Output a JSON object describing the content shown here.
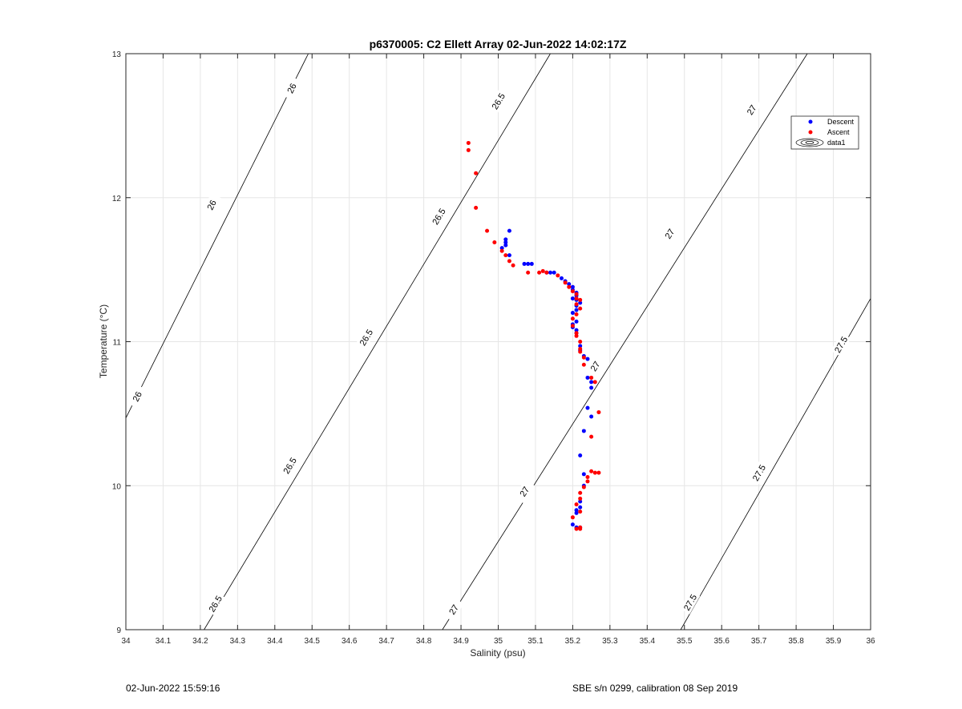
{
  "chart_data": {
    "type": "scatter",
    "title": "p6370005: C2 Ellett Array 02-Jun-2022 14:02:17Z",
    "xlabel": "Salinity (psu)",
    "ylabel": "Temperature (°C)",
    "xlim": [
      34,
      36
    ],
    "ylim": [
      9,
      13
    ],
    "xticks": [
      34,
      34.1,
      34.2,
      34.3,
      34.4,
      34.5,
      34.6,
      34.7,
      34.8,
      34.9,
      35,
      35.1,
      35.2,
      35.3,
      35.4,
      35.5,
      35.6,
      35.7,
      35.8,
      35.9,
      36
    ],
    "xtick_labels": [
      "34",
      "34.1",
      "34.2",
      "34.3",
      "34.4",
      "34.5",
      "34.6",
      "34.7",
      "34.8",
      "34.9",
      "35",
      "35.1",
      "35.2",
      "35.3",
      "35.4",
      "35.5",
      "35.6",
      "35.7",
      "35.8",
      "35.9",
      "36"
    ],
    "yticks": [
      9,
      10,
      11,
      12,
      13
    ],
    "ytick_labels": [
      "9",
      "10",
      "11",
      "12",
      "13"
    ],
    "grid": true,
    "legend_position": "top-right",
    "legend": [
      {
        "label": "Descent",
        "color": "#0000ff",
        "marker": "dot"
      },
      {
        "label": "Ascent",
        "color": "#ff0000",
        "marker": "dot"
      },
      {
        "label": "data1",
        "color": "#000000",
        "marker": "contour"
      }
    ],
    "contours": [
      {
        "level": "26",
        "points": [
          [
            34.0,
            10.47
          ],
          [
            34.49,
            13.0
          ]
        ],
        "labels": [
          [
            34.03,
            10.62
          ],
          [
            34.23,
            11.95
          ],
          [
            34.445,
            12.76
          ]
        ]
      },
      {
        "level": "26.5",
        "points": [
          [
            34.21,
            9.0
          ],
          [
            35.14,
            13.0
          ]
        ],
        "labels": [
          [
            34.24,
            9.18
          ],
          [
            34.44,
            10.14
          ],
          [
            34.645,
            11.03
          ],
          [
            34.84,
            11.87
          ],
          [
            35.0,
            12.67
          ]
        ]
      },
      {
        "level": "27",
        "points": [
          [
            34.85,
            9.0
          ],
          [
            35.83,
            13.0
          ]
        ],
        "labels": [
          [
            34.88,
            9.14
          ],
          [
            35.07,
            9.96
          ],
          [
            35.26,
            10.83
          ],
          [
            35.46,
            11.75
          ],
          [
            35.68,
            12.61
          ]
        ]
      },
      {
        "level": "27.5",
        "points": [
          [
            35.49,
            9.0
          ],
          [
            36.0,
            11.3
          ]
        ],
        "labels": [
          [
            35.515,
            9.19
          ],
          [
            35.7,
            10.09
          ],
          [
            35.92,
            10.98
          ]
        ]
      }
    ],
    "series": [
      {
        "name": "Descent",
        "color": "#0000ff",
        "points": [
          [
            35.02,
            11.67
          ],
          [
            35.03,
            11.77
          ],
          [
            35.02,
            11.71
          ],
          [
            35.02,
            11.69
          ],
          [
            35.01,
            11.65
          ],
          [
            35.03,
            11.6
          ],
          [
            35.07,
            11.54
          ],
          [
            35.08,
            11.54
          ],
          [
            35.09,
            11.54
          ],
          [
            35.13,
            11.48
          ],
          [
            35.14,
            11.48
          ],
          [
            35.15,
            11.48
          ],
          [
            35.17,
            11.44
          ],
          [
            35.18,
            11.42
          ],
          [
            35.19,
            11.4
          ],
          [
            35.2,
            11.38
          ],
          [
            35.2,
            11.36
          ],
          [
            35.21,
            11.34
          ],
          [
            35.21,
            11.32
          ],
          [
            35.2,
            11.3
          ],
          [
            35.21,
            11.29
          ],
          [
            35.22,
            11.27
          ],
          [
            35.21,
            11.25
          ],
          [
            35.21,
            11.22
          ],
          [
            35.2,
            11.2
          ],
          [
            35.21,
            11.14
          ],
          [
            35.2,
            11.12
          ],
          [
            35.2,
            11.1
          ],
          [
            35.21,
            11.08
          ],
          [
            35.21,
            11.06
          ],
          [
            35.22,
            10.97
          ],
          [
            35.22,
            10.94
          ],
          [
            35.23,
            10.9
          ],
          [
            35.24,
            10.88
          ],
          [
            35.24,
            10.75
          ],
          [
            35.25,
            10.72
          ],
          [
            35.25,
            10.68
          ],
          [
            35.24,
            10.54
          ],
          [
            35.25,
            10.48
          ],
          [
            35.23,
            10.38
          ],
          [
            35.22,
            10.21
          ],
          [
            35.23,
            10.08
          ],
          [
            35.23,
            10.0
          ],
          [
            35.22,
            9.89
          ],
          [
            35.22,
            9.85
          ],
          [
            35.21,
            9.83
          ],
          [
            35.21,
            9.81
          ],
          [
            35.2,
            9.73
          ],
          [
            35.21,
            9.71
          ],
          [
            35.22,
            9.71
          ]
        ]
      },
      {
        "name": "Ascent",
        "color": "#ff0000",
        "points": [
          [
            34.92,
            12.38
          ],
          [
            34.92,
            12.33
          ],
          [
            34.94,
            12.17
          ],
          [
            34.94,
            11.93
          ],
          [
            34.97,
            11.77
          ],
          [
            34.99,
            11.69
          ],
          [
            35.01,
            11.63
          ],
          [
            35.02,
            11.6
          ],
          [
            35.03,
            11.56
          ],
          [
            35.04,
            11.53
          ],
          [
            35.08,
            11.48
          ],
          [
            35.11,
            11.48
          ],
          [
            35.12,
            11.49
          ],
          [
            35.13,
            11.48
          ],
          [
            35.16,
            11.46
          ],
          [
            35.18,
            11.41
          ],
          [
            35.19,
            11.38
          ],
          [
            35.2,
            11.35
          ],
          [
            35.21,
            11.33
          ],
          [
            35.21,
            11.3
          ],
          [
            35.22,
            11.29
          ],
          [
            35.21,
            11.26
          ],
          [
            35.22,
            11.23
          ],
          [
            35.21,
            11.19
          ],
          [
            35.2,
            11.16
          ],
          [
            35.2,
            11.11
          ],
          [
            35.21,
            11.06
          ],
          [
            35.21,
            11.04
          ],
          [
            35.22,
            11.0
          ],
          [
            35.22,
            10.95
          ],
          [
            35.22,
            10.93
          ],
          [
            35.23,
            10.89
          ],
          [
            35.23,
            10.84
          ],
          [
            35.25,
            10.75
          ],
          [
            35.26,
            10.72
          ],
          [
            35.27,
            10.51
          ],
          [
            35.25,
            10.34
          ],
          [
            35.25,
            10.1
          ],
          [
            35.26,
            10.09
          ],
          [
            35.27,
            10.09
          ],
          [
            35.24,
            10.06
          ],
          [
            35.24,
            10.03
          ],
          [
            35.23,
            9.99
          ],
          [
            35.22,
            9.95
          ],
          [
            35.22,
            9.91
          ],
          [
            35.21,
            9.87
          ],
          [
            35.22,
            9.82
          ],
          [
            35.2,
            9.78
          ],
          [
            35.21,
            9.7
          ],
          [
            35.22,
            9.71
          ],
          [
            35.22,
            9.7
          ]
        ]
      }
    ]
  },
  "footer": {
    "timestamp": "02-Jun-2022 15:59:16",
    "calibration": "SBE s/n 0299, calibration 08 Sep 2019"
  }
}
